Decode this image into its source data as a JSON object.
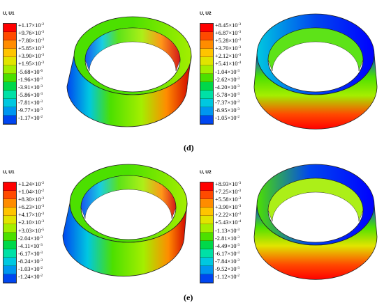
{
  "panels": [
    {
      "id": "d-u1",
      "title": "U, U1",
      "labels": [
        "+1.17×10",
        "+9.76×10",
        "+7.80×10",
        "+5.85×10",
        "+3.90×10",
        "+1.95×10",
        "-5.68×10",
        "-1.96×10",
        "-3.91×10",
        "-5.86×10",
        "-7.81×10",
        "-9.77×10",
        "-1.17×10"
      ],
      "exponents": [
        "-2",
        "-3",
        "-3",
        "-3",
        "-3",
        "-3",
        "-6",
        "-3",
        "-3",
        "-3",
        "-3",
        "-3",
        "-2"
      ]
    },
    {
      "id": "d-u2",
      "title": "U, U2",
      "labels": [
        "+8.45×10",
        "+6.87×10",
        "+5.28×10",
        "+3.70×10",
        "+2.12×10",
        "+5.41×10",
        "-1.04×10",
        "-2.62×10",
        "-4.20×10",
        "-5.78×10",
        "-7.37×10",
        "-8.95×10",
        "-1.05×10"
      ],
      "exponents": [
        "-3",
        "-3",
        "-3",
        "-3",
        "-3",
        "-4",
        "-3",
        "-3",
        "-3",
        "-3",
        "-3",
        "-3",
        "-2"
      ]
    },
    {
      "id": "e-u1",
      "title": "U, U1",
      "labels": [
        "+1.24×10",
        "+1.04×10",
        "+8.30×10",
        "+6.23×10",
        "+4.17×10",
        "+2.10×10",
        "+3.03×10",
        "-2.04×10",
        "-4.11×10",
        "-6.17×10",
        "-8.24×10",
        "-1.03×10",
        "-1.24×10"
      ],
      "exponents": [
        "-2",
        "-2",
        "-3",
        "-3",
        "-3",
        "-3",
        "-5",
        "-3",
        "-3",
        "-3",
        "-3",
        "-2",
        "-2"
      ]
    },
    {
      "id": "e-u2",
      "title": "U, U2",
      "labels": [
        "+8.93×10",
        "+7.25×10",
        "+5.58×10",
        "+3.90×10",
        "+2.22×10",
        "+5.43×10",
        "-1.13×10",
        "-2.81×10",
        "-4.49×10",
        "-6.17×10",
        "-7.84×10",
        "-9.52×10",
        "-1.12×10"
      ],
      "exponents": [
        "-3",
        "-3",
        "-3",
        "-3",
        "-3",
        "-4",
        "-3",
        "-3",
        "-3",
        "-3",
        "-3",
        "-3",
        "-2"
      ]
    }
  ],
  "captions": {
    "d": "(d)",
    "e": "(e)"
  },
  "colormap": [
    "#ff0000",
    "#ff4a00",
    "#ff8c00",
    "#ffc400",
    "#e1e400",
    "#a4ee00",
    "#4ce000",
    "#00d84a",
    "#00e0a6",
    "#00c8e0",
    "#0096f0",
    "#0046f0",
    "#0000ff"
  ]
}
